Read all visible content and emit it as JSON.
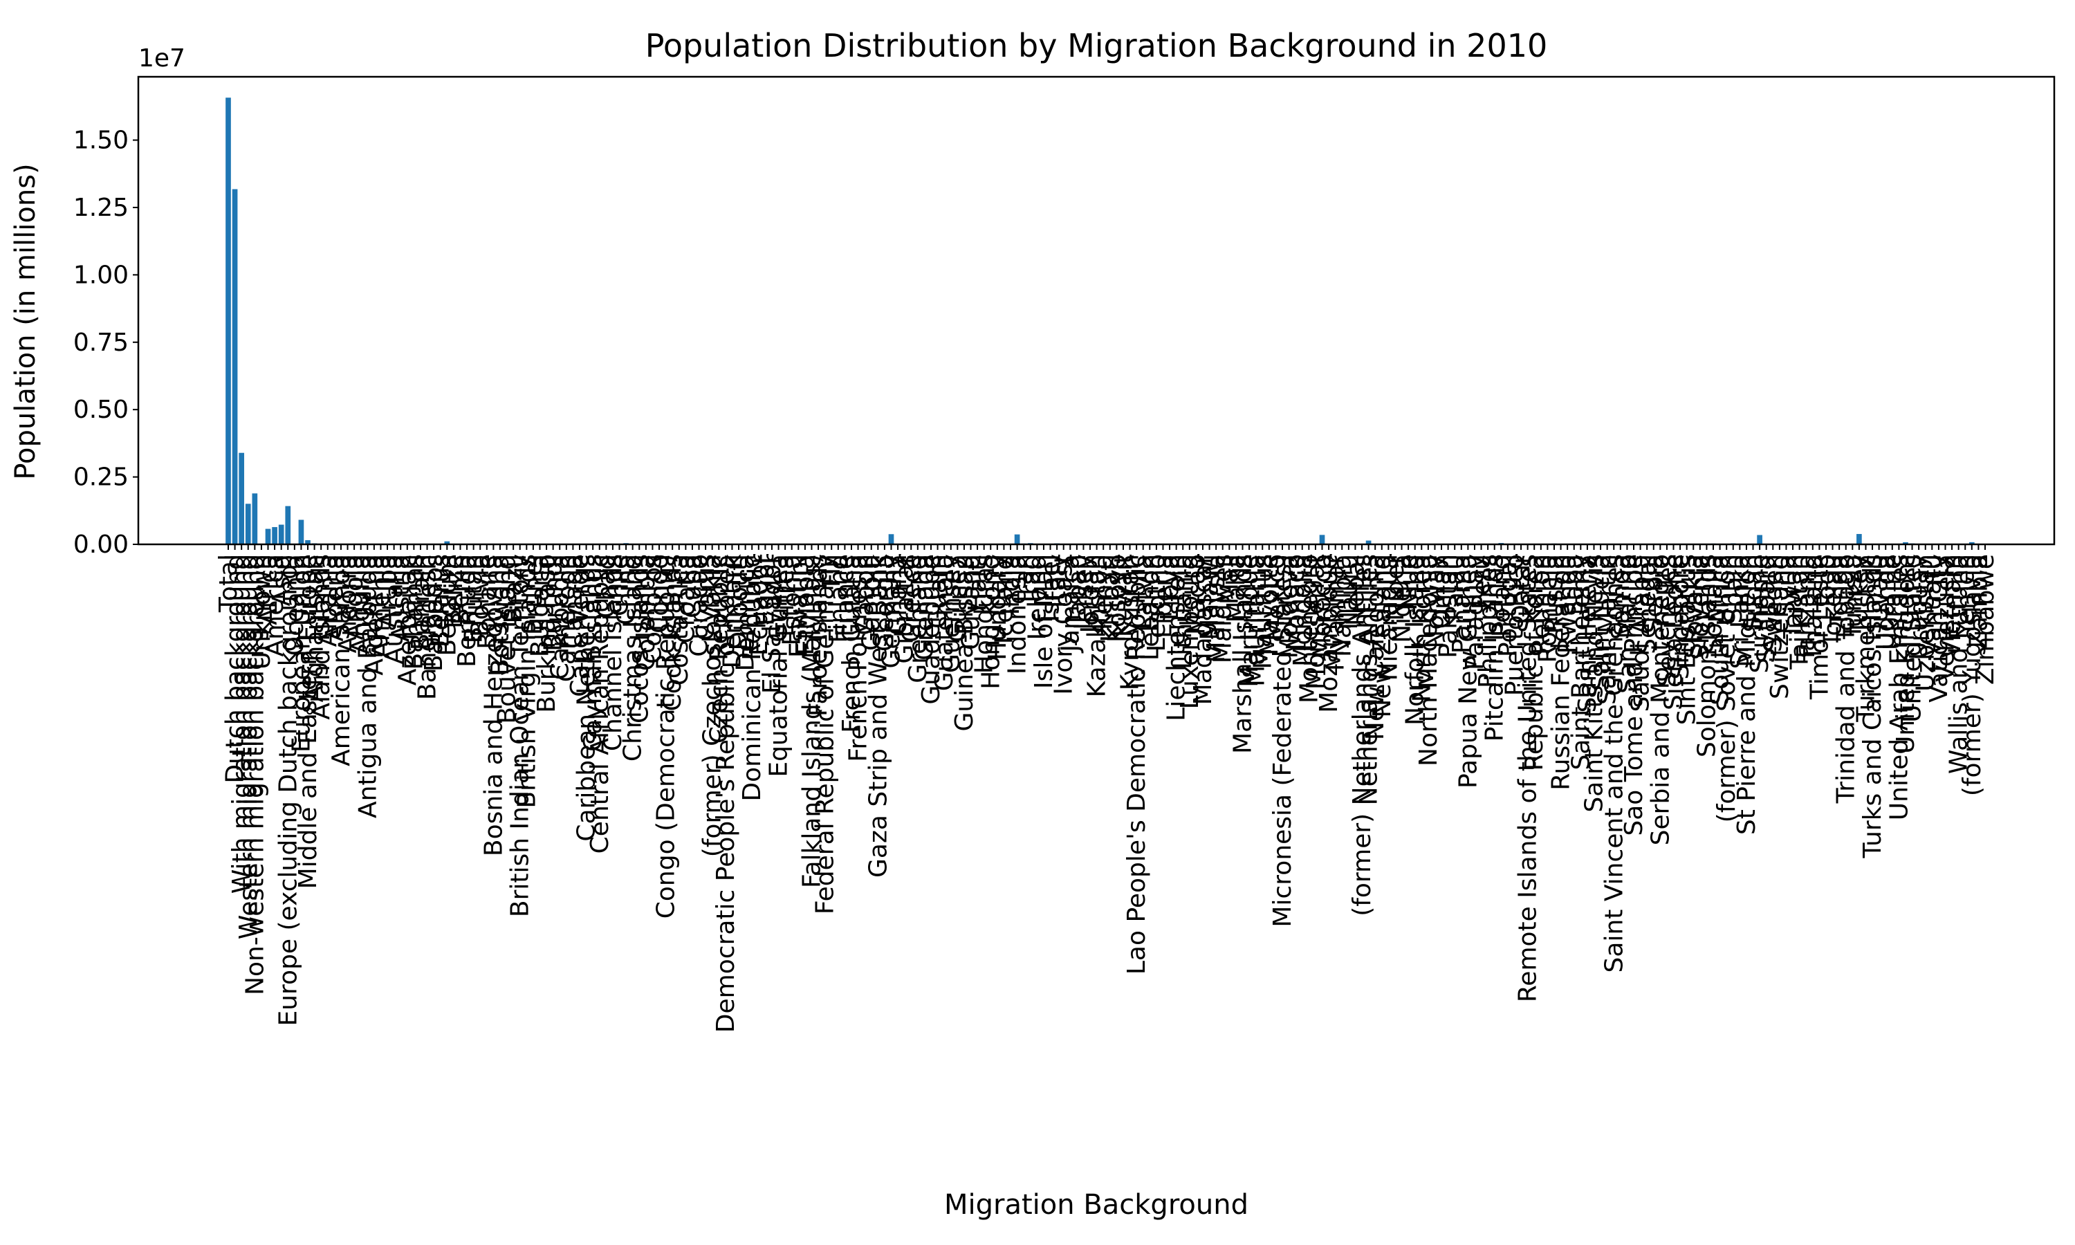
{
  "chart_data": {
    "type": "bar",
    "title": "Population Distribution by Migration Background in 2010",
    "xlabel": "Migration Background",
    "ylabel": "Population (in millions)",
    "y_offset_text": "1e7",
    "ylim": [
      0,
      17350000
    ],
    "yticks": [
      0,
      2500000,
      5000000,
      7500000,
      10000000,
      12500000,
      15000000
    ],
    "ytick_labels": [
      "0.00",
      "0.25",
      "0.50",
      "0.75",
      "1.00",
      "1.25",
      "1.50"
    ],
    "grid": false,
    "legend": "none",
    "bar_color": "#1f77b4",
    "categories": [
      "Total",
      "Dutch background",
      "With migration background",
      "Western migration background",
      "Non-western migration background",
      "Unknown",
      "Africa",
      "America",
      "Asia",
      "Europe (excluding Dutch background)",
      "Oceania",
      "European Union",
      "Middle and Eastern Europe",
      "Afghanistan",
      "Åland Islands",
      "Albania",
      "Algeria",
      "American Samoa",
      "Andorra",
      "Angola",
      "Anguilla",
      "Antigua and Barbuda",
      "Argentina",
      "Armenia",
      "Aruba",
      "Australia",
      "Austria",
      "Azerbaijan",
      "Bahamas",
      "Bahrain",
      "Bangladesh",
      "Barbados",
      "Belarus",
      "Belgium",
      "Belize",
      "Benin",
      "Bermuda",
      "Bhutan",
      "Bolivia",
      "Bonaire",
      "Bosnia and Herzegovina",
      "Botswana",
      "Bouvet Island",
      "Brazil",
      "British Indian Ocean Territory",
      "British Virgin Islands",
      "Brunei",
      "Bulgaria",
      "Burkina Faso",
      "Burundi",
      "Cambodia",
      "Cameroon",
      "Canada",
      "Cape Verde",
      "Caribbean Netherlands",
      "Cayman Islands",
      "Central African Republic",
      "Chad",
      "Channel Islands",
      "Chile",
      "China",
      "Christmas Island",
      "Cocos Islands",
      "Colombia",
      "Comoros",
      "Congo",
      "Congo (Democratic Republic)",
      "Cook Islands",
      "Costa Rica",
      "Croatia",
      "Cuba",
      "Curaçao",
      "Cyprus",
      "(former) Czechoslovakia",
      "Czech Republic",
      "Democratic People's Republic of Korea",
      "Denmark",
      "Djibouti",
      "Dominica",
      "Dominican Republic",
      "Ecuador",
      "Egypt",
      "El Salvador",
      "Equatorial Guinea",
      "Eritrea",
      "Estonia",
      "Eswatini",
      "Ethiopia",
      "Falkland Islands (Malvinas)",
      "Faroe Islands",
      "Federal Republic of Germany",
      "Fiji",
      "Finland",
      "France",
      "French Guiana",
      "French Polynesia",
      "Gabon",
      "Gambia",
      "Gaza Strip and West Bank",
      "Georgia",
      "Germany",
      "Ghana",
      "Gibraltar",
      "Greece",
      "Greenland",
      "Grenada",
      "Guadeloupe",
      "Guam",
      "Guatemala",
      "Guernsey",
      "Guinea",
      "Guinea-Bissau",
      "Guyana",
      "Haiti",
      "Honduras",
      "Hong Kong",
      "Hungary",
      "Iceland",
      "India",
      "Indonesia",
      "Iran",
      "Iraq",
      "Ireland",
      "Isle of Man",
      "Israel",
      "Italy",
      "Ivory Coast",
      "Jamaica",
      "Japan",
      "Jersey",
      "Jordan",
      "Kazakhstan",
      "Kenya",
      "Kiribati",
      "Kosovo",
      "Kuwait",
      "Kyrgyzstan",
      "Lao People's Democratic Republic",
      "Latvia",
      "Lebanon",
      "Lesotho",
      "Liberia",
      "Libya",
      "Liechtenstein",
      "Lithuania",
      "Luxembourg",
      "Macao",
      "Madagascar",
      "Malawi",
      "Malaysia",
      "Maldives",
      "Mali",
      "Malta",
      "Marshall Islands",
      "Martinique",
      "Mauritania",
      "Mauritius",
      "Mayotte",
      "Mexico",
      "Micronesia (Federated States)",
      "Moldova",
      "Monaco",
      "Mongolia",
      "Montenegro",
      "Montserrat",
      "Morocco",
      "Mozambique",
      "Myanmar",
      "Namibia",
      "Nauru",
      "Nepal",
      "(former) Netherlands Antilles",
      "Netherlands Antilles",
      "New Caledonia",
      "New Zealand",
      "Nicaragua",
      "Niger",
      "Nigeria",
      "Niue",
      "Norfolk Island",
      "North Korea",
      "North Macedonia",
      "Norway",
      "Oman",
      "Pakistan",
      "Palau",
      "Panama",
      "Papua New Guinea",
      "Paraguay",
      "Peru",
      "Philippines",
      "Pitcairn Islands",
      "Poland",
      "Portugal",
      "Puerto Rico",
      "Qatar",
      "Remote Islands of the United States",
      "Republic of Korea",
      "Reunion",
      "Romania",
      "Russia",
      "Russian Federation",
      "Rwanda",
      "Saba",
      "Saint Barthelemy",
      "Saint Helena",
      "Saint Kitts and Nevis",
      "Saint Lucia",
      "Saint Martin",
      "Saint Vincent and the Grenadines",
      "Samoa",
      "San Marino",
      "Sao Tome and Principe",
      "Saudi Arabia",
      "Senegal",
      "Serbia",
      "Serbia and Montenegro",
      "Seychelles",
      "Sierra Leone",
      "Singapore",
      "Sint Eustatius",
      "Slovakia",
      "Slovenia",
      "Solomon Islands",
      "Somalia",
      "South Africa",
      "(former) Soviet Union",
      "Spain",
      "Sri Lanka",
      "St Pierre and Miquelon",
      "Sudan",
      "Suriname",
      "Svalbard",
      "Sweden",
      "Switzerland",
      "Syria",
      "Taiwan",
      "Tajikistan",
      "Tanzania",
      "Thailand",
      "Timor-Leste",
      "Togo",
      "Tokelau",
      "Tonga",
      "Trinidad and Tobago",
      "Tunisia",
      "Turkey",
      "Turkmenistan",
      "Turks and Caicos Islands",
      "Tuvalu",
      "Uganda",
      "Ukraine",
      "United Arab Emirates",
      "United Kingdom",
      "United States",
      "Uruguay",
      "Uzbekistan",
      "Vanuatu",
      "Vatican City",
      "Venezuela",
      "Vietnam",
      "Wallis and Futuna",
      "Yemen",
      "(former) Yugoslavia",
      "Zambia",
      "Zimbabwe"
    ],
    "values": [
      16575000,
      13180000,
      3395000,
      1505000,
      1890000,
      0,
      575000,
      640000,
      730000,
      1420000,
      25000,
      910000,
      155000,
      38000,
      0,
      1000,
      8000,
      0,
      200,
      8000,
      100,
      1500,
      6000,
      1500,
      0,
      26000,
      25000,
      3000,
      200,
      100,
      2000,
      500,
      4000,
      112000,
      100,
      1000,
      100,
      100,
      3000,
      0,
      26000,
      500,
      0,
      25000,
      100,
      300,
      200,
      14000,
      1000,
      2000,
      1000,
      3000,
      9000,
      21000,
      0,
      100,
      300,
      500,
      100,
      5000,
      45000,
      0,
      0,
      12000,
      100,
      3000,
      4000,
      100,
      2000,
      10000,
      6000,
      0,
      2000,
      0,
      8000,
      100,
      6000,
      100,
      500,
      15000,
      5000,
      20000,
      1000,
      500,
      3000,
      1000,
      0,
      12000,
      100,
      0,
      0,
      1000,
      4000,
      20000,
      1000,
      1000,
      500,
      2000,
      2000,
      2000,
      378000,
      15000,
      500,
      13000,
      100,
      200,
      100,
      100,
      1000,
      100,
      9000,
      1000,
      2000,
      2000,
      1000,
      18000,
      18000,
      1000,
      17000,
      368000,
      30000,
      45000,
      6000,
      100,
      7000,
      36000,
      2000,
      3000,
      7000,
      100,
      1000,
      3000,
      4000,
      100,
      3000,
      500,
      1000,
      500,
      3000,
      4000,
      100,
      4000,
      500,
      100,
      6000,
      4000,
      100,
      1000,
      500,
      4000,
      100,
      1000,
      1000,
      100,
      0,
      500,
      3000,
      100,
      5000,
      0,
      2000,
      500,
      1000,
      1000,
      100,
      350000,
      1000,
      1000,
      1000,
      100,
      2000,
      0,
      140000,
      100,
      5000,
      1000,
      500,
      12000,
      100,
      0,
      0,
      3000,
      5000,
      500,
      20000,
      100,
      3000,
      100,
      1000,
      6000,
      9000,
      0,
      50000,
      26000,
      100,
      100,
      100,
      2000,
      0,
      9000,
      30000,
      0,
      1000,
      0,
      0,
      100,
      100,
      100,
      0,
      100,
      100,
      100,
      100,
      500,
      2000,
      15000,
      0,
      500,
      2000,
      2000,
      0,
      2000,
      2000,
      100,
      30000,
      8000,
      0,
      38000,
      10000,
      100,
      5000,
      346000,
      0,
      12000,
      15000,
      11000,
      8000,
      500,
      2000,
      15000,
      0,
      1000,
      0,
      100,
      2000,
      8000,
      384000,
      500,
      100,
      0,
      2000,
      8000,
      1000,
      78000,
      35000,
      1500,
      1000,
      100,
      0,
      4000,
      18000,
      0,
      1000,
      80000,
      1000,
      2000
    ]
  }
}
